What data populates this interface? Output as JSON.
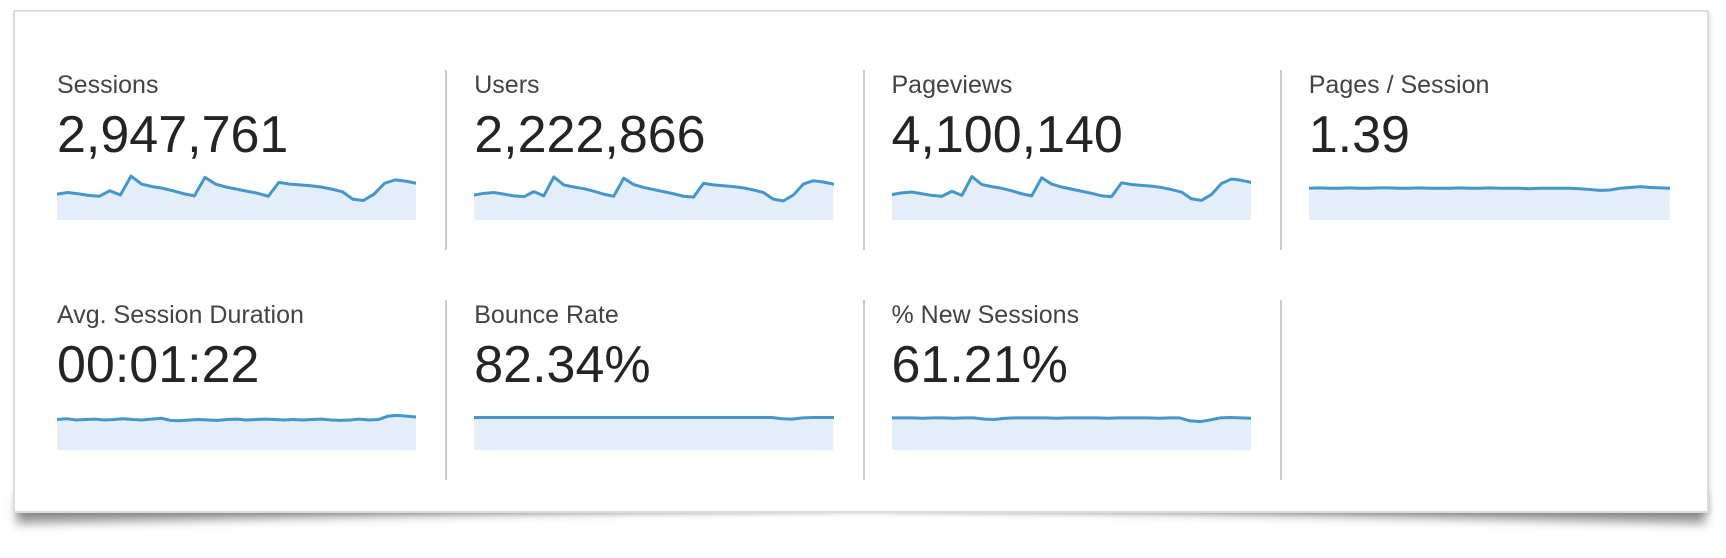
{
  "panel_name": "analytics-metrics-summary",
  "theme": {
    "spark_stroke": "#4597cb",
    "spark_fill": "#e3eef8",
    "divider": "#cccccc",
    "panel_border": "#dcdcdc",
    "label_color": "#434343",
    "value_color": "#242424",
    "background": "#ffffff"
  },
  "chart_data": {
    "type": "area",
    "note": "seven metric cards, each with an unlabeled area sparkline (values normalized 0-1, estimated from pixels)"
  },
  "metrics": [
    {
      "id": "sessions",
      "label": "Sessions",
      "value": "2,947,761",
      "spark": [
        0.52,
        0.56,
        0.53,
        0.49,
        0.47,
        0.6,
        0.5,
        0.95,
        0.76,
        0.7,
        0.66,
        0.6,
        0.53,
        0.48,
        0.92,
        0.76,
        0.69,
        0.64,
        0.59,
        0.54,
        0.47,
        0.8,
        0.76,
        0.74,
        0.72,
        0.69,
        0.64,
        0.58,
        0.4,
        0.37,
        0.52,
        0.78,
        0.86,
        0.83,
        0.78
      ]
    },
    {
      "id": "users",
      "label": "Users",
      "value": "2,222,866",
      "spark": [
        0.5,
        0.54,
        0.56,
        0.52,
        0.48,
        0.46,
        0.58,
        0.48,
        0.93,
        0.74,
        0.69,
        0.65,
        0.59,
        0.52,
        0.47,
        0.9,
        0.75,
        0.68,
        0.63,
        0.58,
        0.53,
        0.47,
        0.45,
        0.78,
        0.74,
        0.72,
        0.7,
        0.67,
        0.62,
        0.56,
        0.4,
        0.36,
        0.5,
        0.76,
        0.84,
        0.81,
        0.76
      ]
    },
    {
      "id": "pageviews",
      "label": "Pageviews",
      "value": "4,100,140",
      "spark": [
        0.51,
        0.55,
        0.57,
        0.53,
        0.49,
        0.47,
        0.59,
        0.49,
        0.94,
        0.75,
        0.7,
        0.66,
        0.6,
        0.53,
        0.48,
        0.91,
        0.76,
        0.69,
        0.64,
        0.59,
        0.54,
        0.48,
        0.46,
        0.79,
        0.75,
        0.73,
        0.71,
        0.68,
        0.63,
        0.57,
        0.41,
        0.37,
        0.51,
        0.77,
        0.88,
        0.85,
        0.8
      ]
    },
    {
      "id": "pages-per-session",
      "label": "Pages / Session",
      "value": "1.39",
      "spark": [
        0.66,
        0.67,
        0.66,
        0.66,
        0.67,
        0.66,
        0.66,
        0.67,
        0.67,
        0.66,
        0.66,
        0.67,
        0.66,
        0.66,
        0.66,
        0.67,
        0.66,
        0.66,
        0.67,
        0.66,
        0.66,
        0.66,
        0.65,
        0.66,
        0.66,
        0.66,
        0.66,
        0.65,
        0.63,
        0.61,
        0.62,
        0.66,
        0.68,
        0.7,
        0.68,
        0.67,
        0.66
      ]
    },
    {
      "id": "avg-session-duration",
      "label": "Avg. Session Duration",
      "value": "00:01:22",
      "spark": [
        0.63,
        0.65,
        0.62,
        0.63,
        0.64,
        0.62,
        0.63,
        0.65,
        0.63,
        0.62,
        0.64,
        0.66,
        0.61,
        0.6,
        0.62,
        0.63,
        0.62,
        0.61,
        0.63,
        0.64,
        0.62,
        0.63,
        0.64,
        0.63,
        0.62,
        0.63,
        0.62,
        0.63,
        0.64,
        0.62,
        0.61,
        0.62,
        0.64,
        0.62,
        0.63,
        0.71,
        0.73,
        0.71,
        0.69
      ]
    },
    {
      "id": "bounce-rate",
      "label": "Bounce Rate",
      "value": "82.34%",
      "spark": [
        0.68,
        0.68,
        0.68,
        0.68,
        0.68,
        0.68,
        0.68,
        0.68,
        0.68,
        0.68,
        0.68,
        0.68,
        0.68,
        0.68,
        0.68,
        0.68,
        0.68,
        0.68,
        0.68,
        0.68,
        0.68,
        0.68,
        0.68,
        0.68,
        0.68,
        0.68,
        0.68,
        0.68,
        0.68,
        0.68,
        0.65,
        0.64,
        0.67,
        0.68,
        0.68,
        0.68
      ]
    },
    {
      "id": "percent-new-sessions",
      "label": "% New Sessions",
      "value": "61.21%",
      "spark": [
        0.67,
        0.67,
        0.67,
        0.66,
        0.67,
        0.67,
        0.66,
        0.67,
        0.67,
        0.64,
        0.63,
        0.66,
        0.67,
        0.67,
        0.67,
        0.67,
        0.66,
        0.67,
        0.67,
        0.67,
        0.67,
        0.66,
        0.67,
        0.67,
        0.67,
        0.67,
        0.66,
        0.67,
        0.67,
        0.6,
        0.58,
        0.62,
        0.67,
        0.68,
        0.67,
        0.66
      ]
    }
  ]
}
